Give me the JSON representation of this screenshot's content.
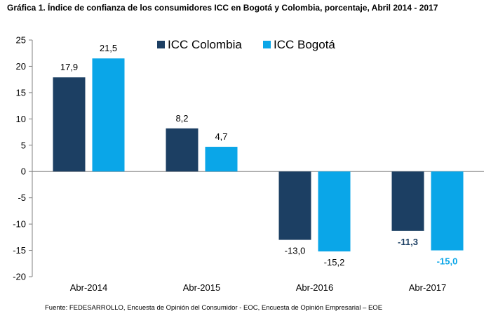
{
  "title": "Gráfica 1.  Índice de confianza de los consumidores ICC en Bogotá y Colombia, porcentaje, Abril 2014 - 2017",
  "source": "Fuente: FEDESARROLLO, Encuesta de Opinión del Consumidor - EOC, Encuesta de Opinión Empresarial – EOE",
  "colors": {
    "colombia": "#1c3f63",
    "bogota": "#0aa6e8"
  },
  "chart_data": {
    "type": "bar",
    "title": "Gráfica 1.  Índice de confianza de los consumidores ICC en Bogotá y Colombia, porcentaje, Abril 2014 - 2017",
    "categories": [
      "Abr-2014",
      "Abr-2015",
      "Abr-2016",
      "Abr-2017"
    ],
    "series": [
      {
        "name": "ICC Colombia",
        "values": [
          17.9,
          8.2,
          -13.0,
          -11.3
        ],
        "labels": [
          "17,9",
          "8,2",
          "-13,0",
          "-11,3"
        ]
      },
      {
        "name": "ICC Bogotá",
        "values": [
          21.5,
          4.7,
          -15.2,
          -15.0
        ],
        "labels": [
          "21,5",
          "4,7",
          "-15,2",
          "-15,0"
        ]
      }
    ],
    "ylim": [
      -20,
      25
    ],
    "yticks": [
      25,
      20,
      15,
      10,
      5,
      0,
      -5,
      -10,
      -15,
      -20
    ],
    "legend": "top-center",
    "grid": false
  }
}
